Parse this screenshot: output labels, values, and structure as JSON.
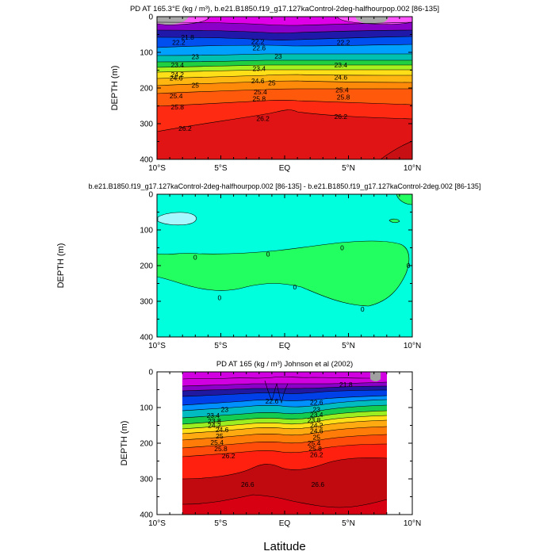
{
  "figure": {
    "xlabel": "Latitude"
  },
  "chart_data": [
    {
      "type": "contour",
      "title": "PD AT 165.3°E (kg / m³), b.e21.B1850.f19_g17.127kaControl-2deg-halfhourpop.002 [86-135]",
      "xlabel": "",
      "ylabel": "DEPTH (m)",
      "xlim": [
        -10,
        10
      ],
      "ylim": [
        0,
        400
      ],
      "xticks": [
        -10,
        -5,
        0,
        5,
        10
      ],
      "xticklabels": [
        "10°S",
        "5°S",
        "EQ",
        "5°N",
        "10°N"
      ],
      "yticks": [
        0,
        100,
        200,
        300,
        400
      ],
      "yticklabels": [
        "0",
        "100",
        "200",
        "300",
        "400"
      ],
      "contour_labels": [
        {
          "text": "21.8",
          "x": -7.6,
          "y": 58
        },
        {
          "text": "22.2",
          "x": -8.3,
          "y": 72
        },
        {
          "text": "22.2",
          "x": -2.1,
          "y": 70
        },
        {
          "text": "22.2",
          "x": 4.6,
          "y": 72
        },
        {
          "text": "22.6",
          "x": -2.0,
          "y": 88
        },
        {
          "text": "23",
          "x": -7.0,
          "y": 112
        },
        {
          "text": "23",
          "x": -0.5,
          "y": 111
        },
        {
          "text": "23.4",
          "x": -8.4,
          "y": 135
        },
        {
          "text": "23.4",
          "x": -2.0,
          "y": 145
        },
        {
          "text": "23.4",
          "x": 4.4,
          "y": 135
        },
        {
          "text": "24.2",
          "x": -8.4,
          "y": 162
        },
        {
          "text": "24.6",
          "x": -8.5,
          "y": 172
        },
        {
          "text": "24.6",
          "x": -2.1,
          "y": 180
        },
        {
          "text": "24.6",
          "x": 4.4,
          "y": 170
        },
        {
          "text": "25",
          "x": -7.0,
          "y": 192
        },
        {
          "text": "25",
          "x": -1.0,
          "y": 185
        },
        {
          "text": "25.4",
          "x": -8.5,
          "y": 222
        },
        {
          "text": "25.4",
          "x": -1.9,
          "y": 211
        },
        {
          "text": "25.4",
          "x": 4.5,
          "y": 205
        },
        {
          "text": "25.8",
          "x": -8.4,
          "y": 253
        },
        {
          "text": "25.8",
          "x": -2.0,
          "y": 230
        },
        {
          "text": "25.8",
          "x": 4.6,
          "y": 225
        },
        {
          "text": "26.2",
          "x": -7.8,
          "y": 313
        },
        {
          "text": "26.2",
          "x": -1.7,
          "y": 285
        },
        {
          "text": "26.2",
          "x": 4.4,
          "y": 280
        }
      ]
    },
    {
      "type": "contour",
      "title": "b.e21.B1850.f19_g17.127kaControl-2deg-halfhourpop.002 [86-135] - b.e21.B1850.f19_g17.127kaControl-2deg.002 [86-135]",
      "xlabel": "",
      "ylabel": "DEPTH (m)",
      "xlim": [
        -10,
        10
      ],
      "ylim": [
        0,
        400
      ],
      "xticks": [
        -10,
        -5,
        0,
        5,
        10
      ],
      "xticklabels": [
        "10°S",
        "5°S",
        "EQ",
        "5°N",
        "10°N"
      ],
      "yticks": [
        0,
        100,
        200,
        300,
        400
      ],
      "yticklabels": [
        "0",
        "100",
        "200",
        "300",
        "400"
      ],
      "contour_labels": [
        {
          "text": "0",
          "x": -7.0,
          "y": 177
        },
        {
          "text": "0",
          "x": -1.3,
          "y": 168
        },
        {
          "text": "0",
          "x": 4.5,
          "y": 150
        },
        {
          "text": "0",
          "x": 9.7,
          "y": 200
        },
        {
          "text": "0",
          "x": 0.8,
          "y": 260
        },
        {
          "text": "0",
          "x": -5.1,
          "y": 290
        },
        {
          "text": "0",
          "x": 6.1,
          "y": 322
        }
      ]
    },
    {
      "type": "contour",
      "title": "PD AT 165 (kg / m³) Johnson et al (2002)",
      "xlabel": "",
      "ylabel": "DEPTH (m)",
      "xlim": [
        -10,
        10
      ],
      "ylim": [
        0,
        400
      ],
      "data_xrange": [
        -8,
        8
      ],
      "xticks": [
        -10,
        -5,
        0,
        5,
        10
      ],
      "xticklabels": [
        "10°S",
        "5°S",
        "EQ",
        "5°N",
        "10°N"
      ],
      "yticks": [
        0,
        100,
        200,
        300,
        400
      ],
      "yticklabels": [
        "0",
        "100",
        "200",
        "300",
        "400"
      ],
      "contour_labels": [
        {
          "text": "21.8",
          "x": 4.8,
          "y": 35
        },
        {
          "text": "22.6",
          "x": -1.0,
          "y": 82
        },
        {
          "text": "23",
          "x": -4.7,
          "y": 105
        },
        {
          "text": "23.4",
          "x": -5.6,
          "y": 122
        },
        {
          "text": "23.8",
          "x": -5.5,
          "y": 138
        },
        {
          "text": "24.2",
          "x": -5.5,
          "y": 150
        },
        {
          "text": "24.6",
          "x": -4.9,
          "y": 162
        },
        {
          "text": "25",
          "x": -5.1,
          "y": 180
        },
        {
          "text": "25.4",
          "x": -5.3,
          "y": 198
        },
        {
          "text": "25.8",
          "x": -5.0,
          "y": 215
        },
        {
          "text": "26.2",
          "x": -4.4,
          "y": 235
        },
        {
          "text": "26.6",
          "x": -2.9,
          "y": 315
        },
        {
          "text": "22.6",
          "x": 2.5,
          "y": 85
        },
        {
          "text": "23",
          "x": 2.5,
          "y": 105
        },
        {
          "text": "23.4",
          "x": 2.5,
          "y": 120
        },
        {
          "text": "23.8",
          "x": 2.3,
          "y": 135
        },
        {
          "text": "24.2",
          "x": 2.5,
          "y": 150
        },
        {
          "text": "24.6",
          "x": 2.5,
          "y": 165
        },
        {
          "text": "25",
          "x": 2.5,
          "y": 183
        },
        {
          "text": "25.4",
          "x": 2.3,
          "y": 200
        },
        {
          "text": "25.8",
          "x": 2.4,
          "y": 215
        },
        {
          "text": "26.2",
          "x": 2.5,
          "y": 232
        },
        {
          "text": "26.6",
          "x": 2.6,
          "y": 315
        }
      ]
    }
  ]
}
